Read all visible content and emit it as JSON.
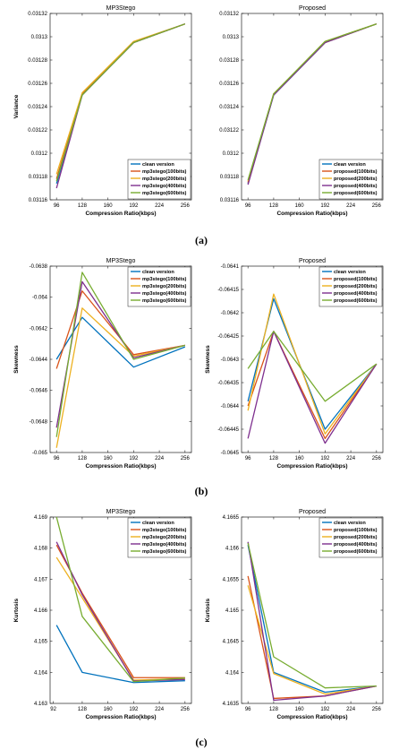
{
  "panel_labels": [
    "(a)",
    "(b)",
    "(c)"
  ],
  "colors": [
    "#0072BD",
    "#D95319",
    "#EDB120",
    "#7E2F8E",
    "#77AC30"
  ],
  "chart_data": [
    {
      "type": "line",
      "title": "MP3Stego",
      "xlabel": "Compression Ratio(kbps)",
      "ylabel": "Variance",
      "x": [
        96,
        128,
        192,
        256
      ],
      "xlim": [
        88,
        264
      ],
      "xticks": [
        96,
        128,
        160,
        192,
        224,
        256
      ],
      "xtick_labels": [
        "96",
        "128",
        "160",
        "192",
        "224",
        "256"
      ],
      "ylim": [
        0.03116,
        0.03132
      ],
      "yticks": [
        0.03116,
        0.03118,
        0.0312,
        0.03122,
        0.03124,
        0.03126,
        0.03128,
        0.0313,
        0.03132
      ],
      "ytick_labels": [
        "0.03116",
        "0.03118",
        "0.0312",
        "0.03122",
        "0.03124",
        "0.03126",
        "0.03128",
        "0.0313",
        "0.03132"
      ],
      "legend_position": "bottom-right",
      "series": [
        {
          "name": "clean version",
          "values": [
            0.031174,
            0.03125,
            0.031295,
            0.031311
          ]
        },
        {
          "name": "mp3stego(100bits)",
          "values": [
            0.031178,
            0.031251,
            0.031295,
            0.031311
          ]
        },
        {
          "name": "mp3stego(200bits)",
          "values": [
            0.031182,
            0.031252,
            0.031296,
            0.031311
          ]
        },
        {
          "name": "mp3stego(400bits)",
          "values": [
            0.03117,
            0.03125,
            0.031295,
            0.031311
          ]
        },
        {
          "name": "mp3stego(600bits)",
          "values": [
            0.031176,
            0.03125,
            0.031295,
            0.031311
          ]
        }
      ]
    },
    {
      "type": "line",
      "title": "Proposed",
      "xlabel": "Compression Ratio(kbps)",
      "ylabel": "",
      "x": [
        96,
        128,
        192,
        256
      ],
      "xlim": [
        88,
        264
      ],
      "xticks": [
        96,
        128,
        160,
        192,
        224,
        256
      ],
      "xtick_labels": [
        "96",
        "128",
        "160",
        "192",
        "224",
        "256"
      ],
      "ylim": [
        0.03116,
        0.03132
      ],
      "yticks": [
        0.03116,
        0.03118,
        0.0312,
        0.03122,
        0.03124,
        0.03126,
        0.03128,
        0.0313,
        0.03132
      ],
      "ytick_labels": [
        "0.03116",
        "0.03118",
        "0.0312",
        "0.03122",
        "0.03124",
        "0.03126",
        "0.03128",
        "0.0313",
        "0.03132"
      ],
      "legend_position": "bottom-right",
      "series": [
        {
          "name": "clean version",
          "values": [
            0.031174,
            0.03125,
            0.031295,
            0.031311
          ]
        },
        {
          "name": "proposed(100bits)",
          "values": [
            0.031175,
            0.031251,
            0.031295,
            0.031311
          ]
        },
        {
          "name": "proposed(200bits)",
          "values": [
            0.031176,
            0.031251,
            0.031296,
            0.031311
          ]
        },
        {
          "name": "proposed(400bits)",
          "values": [
            0.031173,
            0.03125,
            0.031295,
            0.031311
          ]
        },
        {
          "name": "proposed(600bits)",
          "values": [
            0.031177,
            0.031251,
            0.031296,
            0.031311
          ]
        }
      ]
    },
    {
      "type": "line",
      "title": "MP3Stego",
      "xlabel": "Compression Ratio(kbps)",
      "ylabel": "Skewness",
      "x": [
        96,
        128,
        192,
        256
      ],
      "xlim": [
        88,
        264
      ],
      "xticks": [
        96,
        128,
        160,
        192,
        224,
        256
      ],
      "xtick_labels": [
        "96",
        "128",
        "160",
        "192",
        "224",
        "256"
      ],
      "ylim": [
        -0.065,
        -0.0638
      ],
      "yticks": [
        -0.065,
        -0.0648,
        -0.0646,
        -0.0644,
        -0.0642,
        -0.064,
        -0.0638
      ],
      "ytick_labels": [
        "-0.065",
        "-0.0648",
        "-0.0646",
        "-0.0644",
        "-0.0642",
        "-0.064",
        "-0.0638"
      ],
      "legend_position": "top-right",
      "series": [
        {
          "name": "clean version",
          "values": [
            -0.0644,
            -0.06413,
            -0.06445,
            -0.06432
          ]
        },
        {
          "name": "mp3stego(100bits)",
          "values": [
            -0.06446,
            -0.06396,
            -0.06437,
            -0.06431
          ]
        },
        {
          "name": "mp3stego(200bits)",
          "values": [
            -0.06497,
            -0.06407,
            -0.06438,
            -0.06431
          ]
        },
        {
          "name": "mp3stego(400bits)",
          "values": [
            -0.06484,
            -0.0639,
            -0.06439,
            -0.06431
          ]
        },
        {
          "name": "mp3stego(600bits)",
          "values": [
            -0.0649,
            -0.06384,
            -0.0644,
            -0.06431
          ]
        }
      ]
    },
    {
      "type": "line",
      "title": "Proposed",
      "xlabel": "Compression Ratio(kbps)",
      "ylabel": "Skewness",
      "x": [
        96,
        128,
        192,
        256
      ],
      "xlim": [
        88,
        264
      ],
      "xticks": [
        96,
        128,
        160,
        192,
        224,
        256
      ],
      "xtick_labels": [
        "96",
        "128",
        "160",
        "192",
        "224",
        "256"
      ],
      "ylim": [
        -0.0645,
        -0.0641
      ],
      "yticks": [
        -0.0645,
        -0.06445,
        -0.0644,
        -0.06435,
        -0.0643,
        -0.06425,
        -0.0642,
        -0.06415,
        -0.0641
      ],
      "ytick_labels": [
        "-0.0645",
        "-0.06445",
        "-0.0644",
        "-0.06435",
        "-0.0643",
        "-0.06425",
        "-0.0642",
        "-0.06415",
        "-0.0641"
      ],
      "legend_position": "top-right",
      "series": [
        {
          "name": "clean version",
          "values": [
            -0.06439,
            -0.06417,
            -0.06445,
            -0.06431
          ]
        },
        {
          "name": "proposed(100bits)",
          "values": [
            -0.0644,
            -0.06424,
            -0.06447,
            -0.06431
          ]
        },
        {
          "name": "proposed(200bits)",
          "values": [
            -0.06441,
            -0.06416,
            -0.06446,
            -0.06431
          ]
        },
        {
          "name": "proposed(400bits)",
          "values": [
            -0.06447,
            -0.06424,
            -0.06448,
            -0.06431
          ]
        },
        {
          "name": "proposed(600bits)",
          "values": [
            -0.06432,
            -0.06424,
            -0.06439,
            -0.06431
          ]
        }
      ]
    },
    {
      "type": "line",
      "title": "MP3Stego",
      "xlabel": "Compression Ratio(kbps)",
      "ylabel": "Kurtosis",
      "x": [
        96,
        128,
        192,
        256
      ],
      "xlim": [
        88,
        264
      ],
      "xticks": [
        92,
        128,
        160,
        192,
        224,
        256
      ],
      "xtick_labels": [
        "92",
        "128",
        "160",
        "192",
        "224",
        "256"
      ],
      "ylim": [
        4.163,
        4.169
      ],
      "yticks": [
        4.163,
        4.164,
        4.165,
        4.166,
        4.167,
        4.168,
        4.169
      ],
      "ytick_labels": [
        "4.163",
        "4.164",
        "4.165",
        "4.166",
        "4.167",
        "4.168",
        "4.169"
      ],
      "legend_position": "top-right",
      "series": [
        {
          "name": "clean version",
          "values": [
            4.16552,
            4.164,
            4.16367,
            4.16373
          ]
        },
        {
          "name": "mp3stego(100bits)",
          "values": [
            4.1681,
            4.16655,
            4.16383,
            4.16383
          ]
        },
        {
          "name": "mp3stego(200bits)",
          "values": [
            4.1677,
            4.1664,
            4.16375,
            4.1638
          ]
        },
        {
          "name": "mp3stego(400bits)",
          "values": [
            4.1682,
            4.1665,
            4.16372,
            4.16377
          ]
        },
        {
          "name": "mp3stego(600bits)",
          "values": [
            4.169,
            4.1658,
            4.1637,
            4.16382
          ]
        }
      ]
    },
    {
      "type": "line",
      "title": "Proposed",
      "xlabel": "Compression Ratio(kbps)",
      "ylabel": "Kurtosis",
      "x": [
        96,
        128,
        192,
        256
      ],
      "xlim": [
        88,
        264
      ],
      "xticks": [
        96,
        128,
        160,
        192,
        224,
        256
      ],
      "xtick_labels": [
        "96",
        "128",
        "160",
        "192",
        "224",
        "256"
      ],
      "ylim": [
        4.1635,
        4.1665
      ],
      "yticks": [
        4.1635,
        4.164,
        4.1645,
        4.165,
        4.1655,
        4.166,
        4.1665
      ],
      "ytick_labels": [
        "4.1635",
        "4.164",
        "4.1645",
        "4.165",
        "4.1655",
        "4.166",
        "4.1665"
      ],
      "legend_position": "top-right",
      "series": [
        {
          "name": "clean version",
          "values": [
            4.16605,
            4.164,
            4.16368,
            4.16378
          ]
        },
        {
          "name": "proposed(100bits)",
          "values": [
            4.16555,
            4.16358,
            4.16362,
            4.16378
          ]
        },
        {
          "name": "proposed(200bits)",
          "values": [
            4.1654,
            4.16398,
            4.16365,
            4.16378
          ]
        },
        {
          "name": "proposed(400bits)",
          "values": [
            4.1661,
            4.16355,
            4.16362,
            4.16378
          ]
        },
        {
          "name": "proposed(600bits)",
          "values": [
            4.16608,
            4.16425,
            4.16375,
            4.16378
          ]
        }
      ]
    }
  ]
}
